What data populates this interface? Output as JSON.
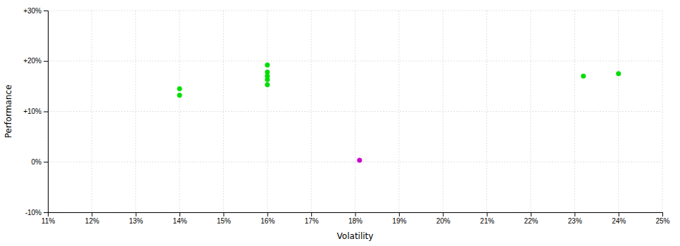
{
  "chart_data": {
    "type": "scatter",
    "xlabel": "Volatility",
    "ylabel": "Performance",
    "xlim": [
      0.11,
      0.25
    ],
    "ylim": [
      -0.1,
      0.3
    ],
    "xticks": [
      {
        "value": 0.11,
        "label": "11%"
      },
      {
        "value": 0.12,
        "label": "12%"
      },
      {
        "value": 0.13,
        "label": "13%"
      },
      {
        "value": 0.14,
        "label": "14%"
      },
      {
        "value": 0.15,
        "label": "15%"
      },
      {
        "value": 0.16,
        "label": "16%"
      },
      {
        "value": 0.17,
        "label": "17%"
      },
      {
        "value": 0.18,
        "label": "18%"
      },
      {
        "value": 0.19,
        "label": "19%"
      },
      {
        "value": 0.2,
        "label": "20%"
      },
      {
        "value": 0.21,
        "label": "21%"
      },
      {
        "value": 0.22,
        "label": "22%"
      },
      {
        "value": 0.23,
        "label": "23%"
      },
      {
        "value": 0.24,
        "label": "24%"
      },
      {
        "value": 0.25,
        "label": "25%"
      }
    ],
    "yticks": [
      {
        "value": -0.1,
        "label": "-10%"
      },
      {
        "value": 0.0,
        "label": "0%"
      },
      {
        "value": 0.1,
        "label": "+10%"
      },
      {
        "value": 0.2,
        "label": "+20%"
      },
      {
        "value": 0.3,
        "label": "+30%"
      }
    ],
    "grid": true,
    "series": [
      {
        "color": "#00dd00",
        "x": [
          0.14,
          0.14,
          0.16,
          0.16,
          0.16,
          0.16,
          0.16,
          0.232,
          0.24
        ],
        "values": [
          0.145,
          0.132,
          0.192,
          0.178,
          0.17,
          0.163,
          0.153,
          0.17,
          0.175
        ]
      },
      {
        "color": "#cc00cc",
        "x": [
          0.181
        ],
        "values": [
          0.003
        ]
      }
    ]
  }
}
